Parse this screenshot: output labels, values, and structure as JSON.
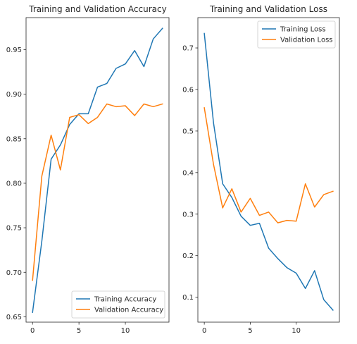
{
  "chart_data": [
    {
      "type": "line",
      "title": "Training and Validation Accuracy",
      "xlabel": "",
      "ylabel": "",
      "xlim": [
        -0.7,
        14.7
      ],
      "ylim": [
        0.644,
        0.986
      ],
      "x_ticks": [
        0,
        5,
        10
      ],
      "y_ticks": [
        0.65,
        0.7,
        0.75,
        0.8,
        0.85,
        0.9,
        0.95
      ],
      "y_tick_labels": [
        "0.65",
        "0.70",
        "0.75",
        "0.80",
        "0.85",
        "0.90",
        "0.95"
      ],
      "legend_position": "lower-right",
      "grid": false,
      "x": [
        0,
        1,
        2,
        3,
        4,
        5,
        6,
        7,
        8,
        9,
        10,
        11,
        12,
        13,
        14
      ],
      "series": [
        {
          "name": "Training Accuracy",
          "color": "#1f77b4",
          "values": [
            0.655,
            0.735,
            0.827,
            0.843,
            0.866,
            0.878,
            0.878,
            0.908,
            0.912,
            0.929,
            0.934,
            0.949,
            0.931,
            0.962,
            0.974
          ]
        },
        {
          "name": "Validation Accuracy",
          "color": "#ff7f0e",
          "values": [
            0.691,
            0.808,
            0.854,
            0.815,
            0.874,
            0.877,
            0.867,
            0.874,
            0.889,
            0.886,
            0.887,
            0.876,
            0.889,
            0.886,
            0.889
          ]
        }
      ]
    },
    {
      "type": "line",
      "title": "Training and Validation Loss",
      "xlabel": "",
      "ylabel": "",
      "xlim": [
        -0.7,
        14.7
      ],
      "ylim": [
        0.04,
        0.773
      ],
      "x_ticks": [
        0,
        5,
        10
      ],
      "y_ticks": [
        0.1,
        0.2,
        0.3,
        0.4,
        0.5,
        0.6,
        0.7
      ],
      "y_tick_labels": [
        "0.1",
        "0.2",
        "0.3",
        "0.4",
        "0.5",
        "0.6",
        "0.7"
      ],
      "legend_position": "upper-right",
      "grid": false,
      "x": [
        0,
        1,
        2,
        3,
        4,
        5,
        6,
        7,
        8,
        9,
        10,
        11,
        12,
        13,
        14
      ],
      "series": [
        {
          "name": "Training Loss",
          "color": "#1f77b4",
          "values": [
            0.735,
            0.52,
            0.373,
            0.34,
            0.295,
            0.273,
            0.278,
            0.218,
            0.193,
            0.171,
            0.158,
            0.121,
            0.164,
            0.094,
            0.069
          ]
        },
        {
          "name": "Validation Loss",
          "color": "#ff7f0e",
          "values": [
            0.556,
            0.42,
            0.315,
            0.361,
            0.305,
            0.338,
            0.297,
            0.305,
            0.279,
            0.285,
            0.283,
            0.373,
            0.317,
            0.347,
            0.355
          ]
        }
      ]
    }
  ]
}
